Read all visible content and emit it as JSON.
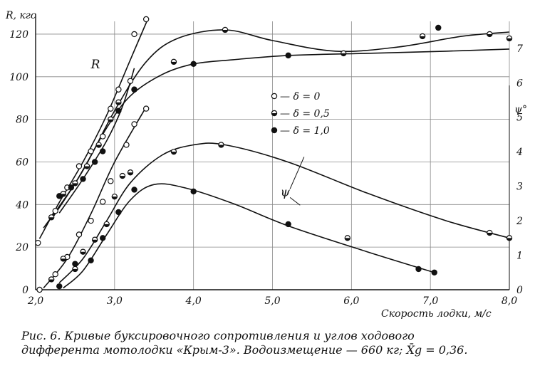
{
  "chart_data": {
    "type": "scatter",
    "title": "",
    "xlabel": "Скорость лодки, м/с",
    "ylabel_left": "R, кгс",
    "ylabel_right": "ψ°",
    "xlim": [
      2.0,
      8.0
    ],
    "ylim_left": [
      0,
      126
    ],
    "ylim_right": [
      0,
      7.78
    ],
    "x_ticks": [
      "2,0",
      "3,0",
      "4,0",
      "5,0",
      "6,0",
      "7,0",
      "8,0"
    ],
    "y_ticks_left": [
      "0",
      "20",
      "40",
      "60",
      "80",
      "100",
      "120"
    ],
    "y_ticks_right": [
      "0",
      "1",
      "2",
      "3",
      "4",
      "5",
      "6",
      "7"
    ],
    "legend": [
      "— δ̄ = 0",
      "— δ̄ = 0,5",
      "— δ̄ = 1,0"
    ],
    "grid": true,
    "annotations": [
      {
        "text": "R",
        "at_x": 2.7,
        "at_y_left": 104
      },
      {
        "text": "ψ",
        "at_x": 5.1,
        "at_y_left": 44
      }
    ],
    "series": [
      {
        "marker": "open",
        "axis": "R",
        "x": [
          2.03,
          2.25,
          2.4,
          2.55,
          2.7,
          2.85,
          2.95,
          3.05,
          3.2,
          3.25,
          3.4
        ],
        "y": [
          22,
          37,
          48,
          58,
          65,
          72,
          85,
          94,
          98,
          120,
          127
        ]
      },
      {
        "marker": "half",
        "axis": "R",
        "x": [
          2.2,
          2.35,
          2.5,
          2.65,
          2.8,
          2.95,
          3.05,
          3.25,
          3.75,
          4.4,
          5.9,
          6.9,
          7.75,
          8.0
        ],
        "y": [
          34,
          45,
          50,
          58,
          68,
          80,
          88,
          94,
          107,
          122,
          111,
          119,
          120,
          118
        ]
      },
      {
        "marker": "filled",
        "axis": "R",
        "x": [
          2.3,
          2.45,
          2.6,
          2.75,
          2.85,
          3.05,
          3.25,
          4.0,
          5.2,
          7.1
        ],
        "y": [
          44,
          48,
          52,
          60,
          65,
          84,
          94,
          106,
          110,
          123
        ]
      },
      {
        "marker": "open",
        "axis": "psi",
        "x": [
          2.05,
          2.25,
          2.4,
          2.55,
          2.7,
          2.85,
          2.95,
          3.15,
          3.25,
          3.4
        ],
        "y": [
          0.0,
          0.45,
          0.95,
          1.6,
          2.0,
          2.55,
          3.15,
          4.2,
          4.8,
          5.25
        ]
      },
      {
        "marker": "half",
        "axis": "psi",
        "x": [
          2.2,
          2.35,
          2.5,
          2.6,
          2.75,
          2.9,
          3.0,
          3.1,
          3.2,
          3.75,
          4.35,
          5.95,
          7.75,
          8.0
        ],
        "y": [
          0.3,
          0.9,
          0.6,
          1.1,
          1.45,
          1.9,
          2.7,
          3.3,
          3.4,
          4.0,
          4.2,
          1.5,
          1.65,
          1.5
        ]
      },
      {
        "marker": "filled",
        "axis": "psi",
        "x": [
          2.3,
          2.5,
          2.7,
          2.85,
          3.05,
          3.25,
          4.0,
          5.2,
          6.85,
          7.05
        ],
        "y": [
          0.1,
          0.75,
          0.85,
          1.5,
          2.25,
          2.9,
          2.85,
          1.9,
          0.6,
          0.5
        ]
      }
    ],
    "curves": [
      {
        "axis": "R",
        "x": [
          2.05,
          2.3,
          2.6,
          2.9,
          3.2,
          3.42
        ],
        "y": [
          24,
          41,
          60,
          82,
          108,
          127
        ]
      },
      {
        "axis": "R",
        "x": [
          2.2,
          2.6,
          3.0,
          3.4,
          3.8,
          4.4,
          5.0,
          5.8,
          6.6,
          7.4,
          8.0
        ],
        "y": [
          33,
          56,
          84,
          107,
          118,
          122,
          117,
          112,
          114,
          119,
          121
        ]
      },
      {
        "axis": "R",
        "x": [
          2.1,
          2.5,
          2.9,
          3.2,
          3.6,
          4.0,
          4.5,
          5.2,
          6.2,
          7.2,
          8.0
        ],
        "y": [
          29,
          50,
          76,
          91,
          101,
          106,
          108,
          110,
          111,
          112,
          113
        ]
      },
      {
        "axis": "R",
        "x": [
          2.3,
          2.6,
          2.9,
          3.1,
          3.25
        ],
        "y": [
          36,
          52,
          70,
          86,
          104
        ]
      },
      {
        "axis": "psi",
        "x": [
          2.1,
          2.4,
          2.7,
          3.0,
          3.4
        ],
        "y": [
          0.05,
          0.9,
          2.2,
          3.7,
          5.3
        ]
      },
      {
        "axis": "psi",
        "x": [
          2.3,
          2.6,
          2.9,
          3.2,
          3.6,
          4.0,
          4.4,
          5.2,
          6.2,
          7.2,
          8.0
        ],
        "y": [
          0.2,
          0.9,
          2.0,
          3.1,
          3.9,
          4.2,
          4.2,
          3.7,
          2.8,
          2.0,
          1.5
        ]
      },
      {
        "axis": "psi",
        "x": [
          2.35,
          2.6,
          2.9,
          3.2,
          3.5,
          3.9,
          4.5,
          5.2,
          6.2,
          7.05
        ],
        "y": [
          0.05,
          0.55,
          1.6,
          2.6,
          3.05,
          2.95,
          2.5,
          1.85,
          1.1,
          0.5
        ]
      }
    ]
  },
  "caption": {
    "line1": "Рис. 6. Кривые буксировочного сопротивления и углов ходового",
    "line2": "дифферента мотолодки «Крым-3». Водоизмещение — 660 кг; X̄g = 0,36."
  }
}
